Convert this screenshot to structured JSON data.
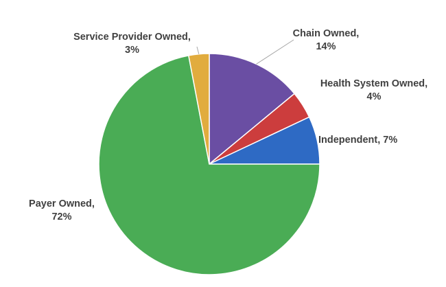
{
  "chart_data": {
    "type": "pie",
    "title": "",
    "slices": [
      {
        "label": "Chain Owned",
        "value": 14,
        "value_label": "14%",
        "color": "#6a4ea3"
      },
      {
        "label": "Health System Owned",
        "value": 4,
        "value_label": "4%",
        "color": "#cc3d3d"
      },
      {
        "label": "Independent",
        "value": 7,
        "value_label": "7%",
        "color": "#2e6ac4"
      },
      {
        "label": "Payer Owned",
        "value": 72,
        "value_label": "72%",
        "color": "#4aac55"
      },
      {
        "label": "Service Provider Owned",
        "value": 3,
        "value_label": "3%",
        "color": "#e1ac3e"
      }
    ],
    "start_angle": "12 o'clock",
    "direction": "clockwise",
    "legend": "none"
  }
}
